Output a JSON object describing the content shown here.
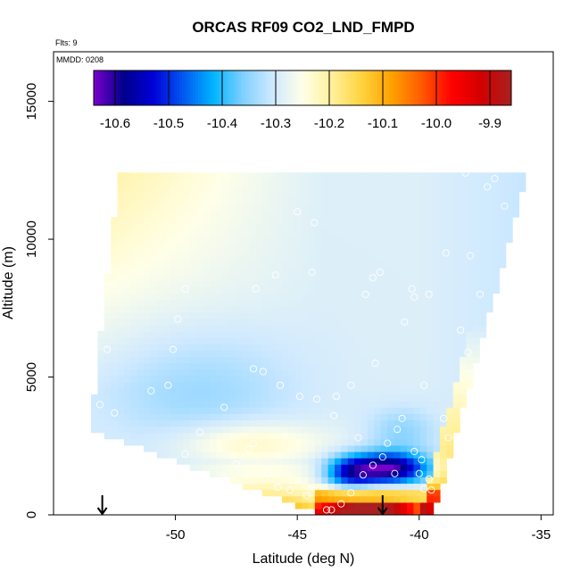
{
  "chart_data": {
    "type": "heatmap",
    "title": "ORCAS RF09 CO2_LND_FMPD",
    "flights_label": "Flts: 9",
    "date_label": "MMDD: 0208",
    "xlabel": "Latitude (deg N)",
    "ylabel": "Altitude (m)",
    "xlim": [
      -55,
      -34.5
    ],
    "ylim": [
      0,
      16800
    ],
    "x_ticks": [
      -50,
      -45,
      -40,
      -35
    ],
    "x_tick_labels": [
      "-50",
      "-45",
      "-40",
      "-35"
    ],
    "y_ticks": [
      0,
      5000,
      10000,
      15000
    ],
    "y_tick_labels": [
      "0",
      "5000",
      "10000",
      "15000"
    ],
    "colorbar": {
      "min": -10.64,
      "max": -9.86,
      "ticks": [
        -10.6,
        -10.5,
        -10.4,
        -10.3,
        -10.2,
        -10.1,
        -10.0,
        -9.9
      ],
      "tick_labels": [
        "-10.6",
        "-10.5",
        "-10.4",
        "-10.3",
        "-10.2",
        "-10.1",
        "-10.0",
        "-9.9"
      ],
      "colors": [
        "#7a00cc",
        "#00008c",
        "#0000d8",
        "#0058f0",
        "#00b4ff",
        "#7fd0ff",
        "#cfe9ff",
        "#ffffe8",
        "#fff09a",
        "#ffd23c",
        "#ffa000",
        "#ff5a00",
        "#ff0000",
        "#d20000",
        "#a82020"
      ]
    },
    "region": {
      "lower_left_lat": -53.5,
      "upper_left_lat": -52.3,
      "top_alt": 12500,
      "right_lat_at_top": -35.5,
      "right_lat_at_bottom": -39.4
    },
    "arrows_lat": [
      -53.0,
      -41.5
    ],
    "samples": [
      [
        -48.6,
        250
      ],
      [
        -48.3,
        180
      ],
      [
        -48.8,
        550
      ],
      [
        -48.5,
        950
      ],
      [
        -48.0,
        1350
      ],
      [
        -47.5,
        1850
      ],
      [
        -47.0,
        2400
      ],
      [
        -46.8,
        2600
      ],
      [
        -46.2,
        1500
      ],
      [
        -45.8,
        1000
      ],
      [
        -45.3,
        900
      ],
      [
        -44.6,
        700
      ],
      [
        -43.8,
        180
      ],
      [
        -43.6,
        180
      ],
      [
        -43.2,
        400
      ],
      [
        -42.8,
        800
      ],
      [
        -42.3,
        1450
      ],
      [
        -41.9,
        1800
      ],
      [
        -41.5,
        2100
      ],
      [
        -41.3,
        2600
      ],
      [
        -40.9,
        3100
      ],
      [
        -40.7,
        3500
      ],
      [
        -40.2,
        2300
      ],
      [
        -40.0,
        1500
      ],
      [
        -39.8,
        950
      ],
      [
        -39.5,
        900
      ],
      [
        -39.6,
        1300
      ],
      [
        -39.9,
        2000
      ],
      [
        -41.0,
        1500
      ],
      [
        -42.5,
        2800
      ],
      [
        -43.5,
        3600
      ],
      [
        -44.2,
        4200
      ],
      [
        -44.9,
        4300
      ],
      [
        -45.7,
        4700
      ],
      [
        -46.4,
        5200
      ],
      [
        -46.8,
        5300
      ],
      [
        -48.0,
        3900
      ],
      [
        -49.0,
        3000
      ],
      [
        -49.6,
        2200
      ],
      [
        -50.3,
        4700
      ],
      [
        -51.0,
        4500
      ],
      [
        -52.5,
        3700
      ],
      [
        -53.1,
        4000
      ],
      [
        -52.8,
        6000
      ],
      [
        -50.1,
        6000
      ],
      [
        -49.9,
        7100
      ],
      [
        -49.6,
        8200
      ],
      [
        -46.7,
        8200
      ],
      [
        -45.9,
        8700
      ],
      [
        -44.4,
        8800
      ],
      [
        -42.2,
        8000
      ],
      [
        -41.9,
        8600
      ],
      [
        -41.6,
        8800
      ],
      [
        -40.3,
        8200
      ],
      [
        -39.6,
        8000
      ],
      [
        -40.2,
        7900
      ],
      [
        -38.9,
        9500
      ],
      [
        -37.9,
        9400
      ],
      [
        -37.5,
        8000
      ],
      [
        -38.3,
        6700
      ],
      [
        -38.0,
        5900
      ],
      [
        -40.6,
        7000
      ],
      [
        -41.8,
        5500
      ],
      [
        -42.8,
        4700
      ],
      [
        -43.4,
        4300
      ],
      [
        -39.8,
        4700
      ],
      [
        -38.8,
        2800
      ],
      [
        -39.0,
        3500
      ],
      [
        -37.2,
        11900
      ],
      [
        -36.9,
        12200
      ],
      [
        -36.3,
        12600
      ],
      [
        -35.8,
        12600
      ],
      [
        -36.5,
        11200
      ],
      [
        -38.1,
        12400
      ],
      [
        -45.0,
        11000
      ],
      [
        -44.3,
        10600
      ]
    ]
  }
}
